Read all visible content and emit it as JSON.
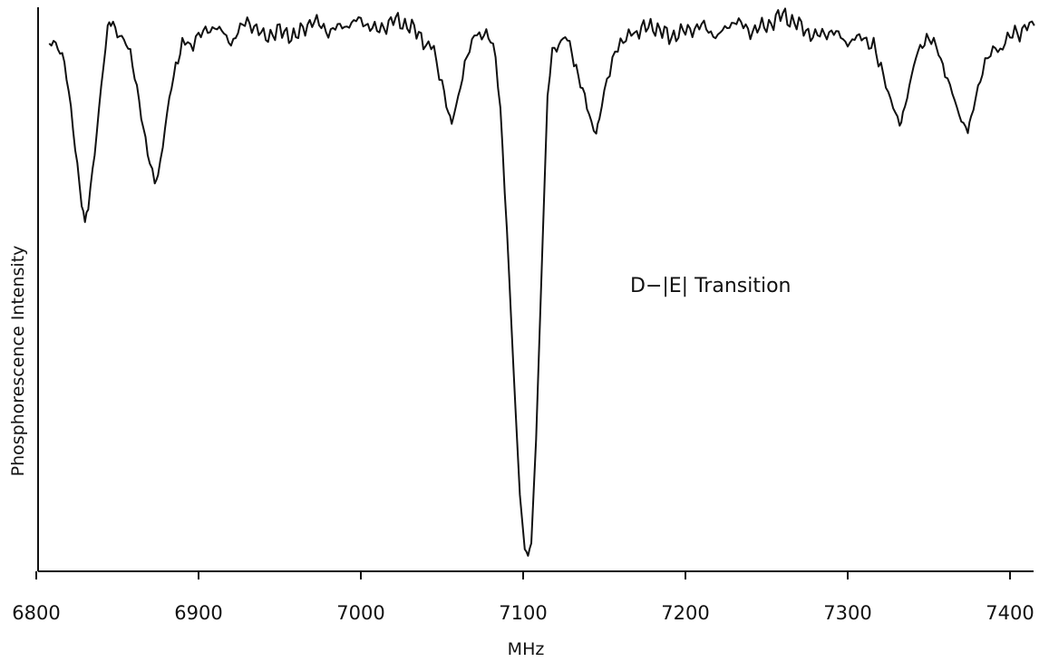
{
  "chart_data": {
    "type": "line",
    "title": "",
    "xlabel": "MHz",
    "ylabel": "Phosphorescence Intensity",
    "annotation": "D−|E| Transition",
    "xlim": [
      6800,
      7415
    ],
    "ylim": [
      0,
      100
    ],
    "xticks": [
      6800,
      6900,
      7000,
      7100,
      7200,
      7300,
      7400
    ],
    "y_tick_labels": false,
    "grid": false,
    "line_color": "#111111",
    "series": [
      {
        "x": [
          6808,
          6812,
          6816,
          6820,
          6824,
          6828,
          6830,
          6832,
          6836,
          6840,
          6844,
          6846,
          6850,
          6854,
          6858,
          6862,
          6866,
          6870,
          6873,
          6875,
          6878,
          6882,
          6886,
          6890,
          6895,
          6900,
          6910,
          6920,
          6930,
          6940,
          6950,
          6960,
          6970,
          6980,
          6990,
          7000,
          7010,
          7020,
          7030,
          7040,
          7045,
          7050,
          7054,
          7056,
          7060,
          7064,
          7070,
          7076,
          7080,
          7083,
          7086,
          7090,
          7094,
          7098,
          7101,
          7103,
          7105,
          7108,
          7112,
          7115,
          7118,
          7122,
          7126,
          7130,
          7134,
          7138,
          7142,
          7145,
          7147,
          7150,
          7155,
          7160,
          7165,
          7170,
          7180,
          7190,
          7200,
          7210,
          7220,
          7230,
          7240,
          7250,
          7260,
          7270,
          7280,
          7290,
          7300,
          7310,
          7316,
          7322,
          7328,
          7332,
          7334,
          7338,
          7342,
          7346,
          7350,
          7356,
          7360,
          7366,
          7370,
          7374,
          7376,
          7379,
          7383,
          7388,
          7394,
          7400,
          7406,
          7412,
          7415
        ],
        "values": [
          93.5,
          94,
          92,
          85,
          75,
          65,
          61,
          64,
          74,
          86,
          96,
          98,
          96,
          94,
          92,
          86,
          78,
          72,
          69,
          70,
          75,
          84,
          90,
          93,
          94,
          95,
          97,
          94,
          98,
          95,
          96,
          95,
          98,
          96,
          97,
          98,
          96,
          98,
          97,
          94,
          92,
          87,
          81,
          79,
          84,
          90,
          95,
          96,
          94,
          91,
          82,
          60,
          35,
          12,
          2,
          1,
          3,
          22,
          58,
          84,
          92,
          94,
          95,
          92,
          88,
          84,
          79,
          78,
          80,
          85,
          91,
          94,
          95,
          96,
          97,
          95,
          96,
          97,
          95,
          98,
          96,
          97,
          99,
          97,
          95,
          96,
          94,
          95,
          93,
          88,
          82,
          79,
          81,
          86,
          91,
          94,
          95,
          92,
          89,
          83,
          80,
          78,
          80,
          84,
          89,
          92,
          93,
          95,
          96,
          97,
          97
        ]
      }
    ]
  }
}
